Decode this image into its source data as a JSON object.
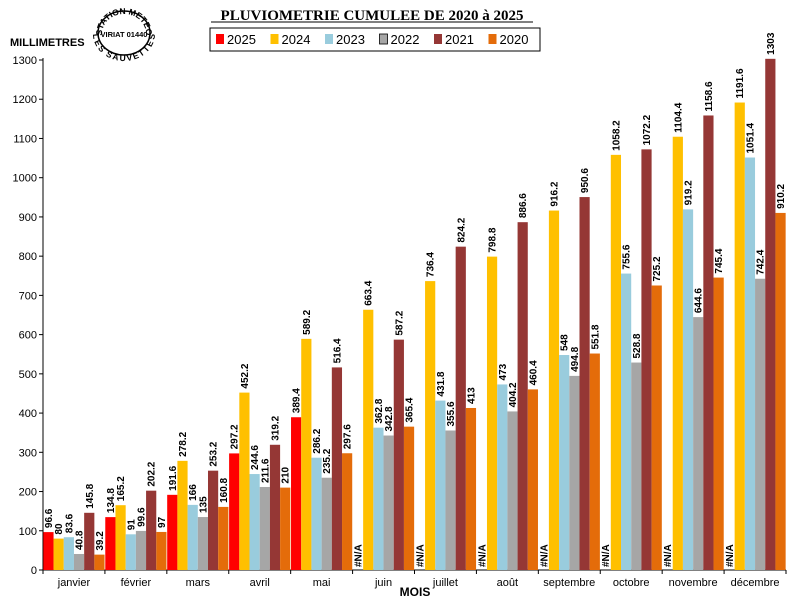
{
  "chart_data": {
    "type": "bar",
    "title": "PLUVIOMETRIE CUMULEE DE 2020 à 2025",
    "ylabel": "MILLIMETRES",
    "xlabel": "MOIS",
    "ylim": [
      0,
      1300
    ],
    "yticks": [
      0,
      100,
      200,
      300,
      400,
      500,
      600,
      700,
      800,
      900,
      1000,
      1100,
      1200,
      1300
    ],
    "grid": false,
    "legend_position": "top",
    "categories": [
      "janvier",
      "février",
      "mars",
      "avril",
      "mai",
      "juin",
      "juillet",
      "août",
      "septembre",
      "octobre",
      "novembre",
      "décembre"
    ],
    "series": [
      {
        "name": "2025",
        "color": "#ff0000",
        "values": [
          96.6,
          134.8,
          191.6,
          297.2,
          389.4,
          null,
          null,
          null,
          null,
          null,
          null,
          null
        ],
        "labels": [
          "96.6",
          "134.8",
          "191.6",
          "297.2",
          "389.4",
          "#N/A",
          "#N/A",
          "#N/A",
          "#N/A",
          "#N/A",
          "#N/A",
          "#N/A"
        ]
      },
      {
        "name": "2024",
        "color": "#ffc000",
        "values": [
          80,
          165.2,
          278.2,
          452.2,
          589.2,
          663.4,
          736.4,
          798.8,
          916.2,
          1058.2,
          1104.4,
          1191.6
        ],
        "labels": [
          "80",
          "165.2",
          "278.2",
          "452.2",
          "589.2",
          "663.4",
          "736.4",
          "798.8",
          "916.2",
          "1058.2",
          "1104.4",
          "1191.6"
        ]
      },
      {
        "name": "2023",
        "color": "#99ccdd",
        "values": [
          83.6,
          91,
          166,
          244.6,
          286.2,
          362.8,
          431.8,
          473,
          548,
          755.6,
          919.2,
          1051.4
        ],
        "labels": [
          "83.6",
          "91",
          "166",
          "244.6",
          "286.2",
          "362.8",
          "431.8",
          "473",
          "548",
          "755.6",
          "919.2",
          "1051.4"
        ]
      },
      {
        "name": "2022",
        "color": "#a6a6a6",
        "values": [
          40.8,
          99.6,
          135,
          211.6,
          235.2,
          342.8,
          355.6,
          404.2,
          494.8,
          528.8,
          644.6,
          742.4
        ],
        "labels": [
          "40.8",
          "99.6",
          "135",
          "211.6",
          "235.2",
          "342.8",
          "355.6",
          "404.2",
          "494.8",
          "528.8",
          "644.6",
          "742.4"
        ]
      },
      {
        "name": "2021",
        "color": "#953735",
        "values": [
          145.8,
          202.2,
          253.2,
          319.2,
          516.4,
          587.2,
          824.2,
          886.6,
          950.6,
          1072.2,
          1158.6,
          1303
        ],
        "labels": [
          "145.8",
          "202.2",
          "253.2",
          "319.2",
          "516.4",
          "587.2",
          "824.2",
          "886.6",
          "950.6",
          "1072.2",
          "1158.6",
          "1303"
        ]
      },
      {
        "name": "2020",
        "color": "#e46c0a",
        "values": [
          39.2,
          97,
          160.8,
          210,
          297.6,
          365.4,
          413,
          460.4,
          551.8,
          725.2,
          745.4,
          910.2
        ],
        "labels": [
          "39.2",
          "97",
          "160.8",
          "210",
          "297.6",
          "365.4",
          "413",
          "460.4",
          "551.8",
          "725.2",
          "745.4",
          "910.2"
        ]
      }
    ]
  },
  "stamp": {
    "top": "STATION METEO",
    "middle": "VIRIAT 01440",
    "bottom": "LES SAUVETTES"
  }
}
